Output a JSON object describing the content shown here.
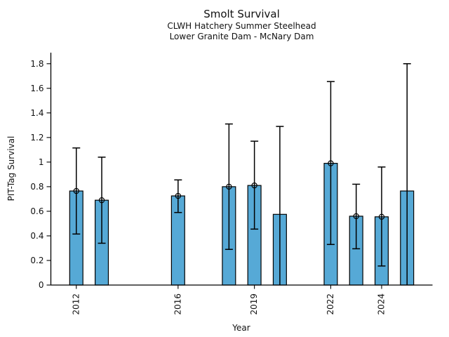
{
  "chart_data": {
    "type": "bar",
    "title": "Smolt Survival",
    "subtitle": [
      "CLWH Hatchery Summer Steelhead",
      "Lower Granite Dam - McNary Dam"
    ],
    "xlabel": "Year",
    "ylabel": "PIT-Tag Survival",
    "x": [
      2012,
      2013,
      2016,
      2018,
      2019,
      2020,
      2022,
      2023,
      2024,
      2025
    ],
    "values": [
      0.765,
      0.69,
      0.725,
      0.8,
      0.81,
      0.575,
      0.99,
      0.56,
      0.555,
      0.765
    ],
    "error_low": [
      0.415,
      0.34,
      0.59,
      0.29,
      0.455,
      0.0,
      0.33,
      0.295,
      0.155,
      0.0
    ],
    "error_high": [
      1.115,
      1.04,
      0.855,
      1.31,
      1.17,
      1.29,
      1.655,
      0.82,
      0.96,
      1.8
    ],
    "has_marker": [
      true,
      true,
      true,
      true,
      true,
      false,
      true,
      true,
      true,
      false
    ],
    "xticks": [
      2012,
      2016,
      2019,
      2022,
      2024
    ],
    "xtick_labels": [
      "2012",
      "2016",
      "2019",
      "2022",
      "2024"
    ],
    "yticks": [
      0,
      0.2,
      0.4,
      0.6,
      0.8,
      1,
      1.2,
      1.4,
      1.6,
      1.8
    ],
    "ytick_labels": [
      "0",
      "0.2",
      "0.4",
      "0.6",
      "0.8",
      "1",
      "1.2",
      "1.4",
      "1.6",
      "1.8"
    ],
    "xlim": [
      2011,
      2026
    ],
    "ylim": [
      0,
      1.89
    ],
    "grid": false,
    "legend": null,
    "bar_color": "#56A9D6",
    "edge_color": "#000000",
    "bar_width_years": 0.52
  }
}
